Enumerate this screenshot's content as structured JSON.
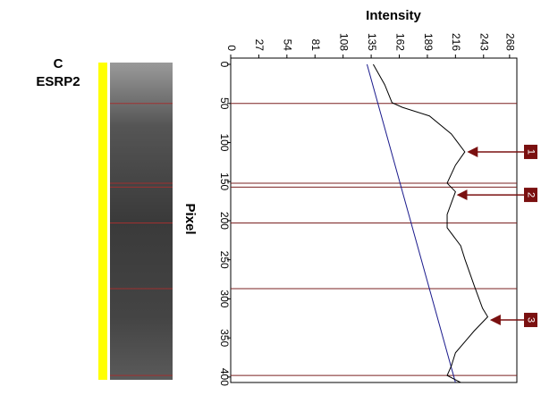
{
  "panel_label": "C",
  "gene": "ESRP2",
  "chart_data": {
    "type": "line",
    "x_label": "Pixel",
    "y_label": "Intensity",
    "xlim": [
      -8,
      407
    ],
    "xticks": [
      0,
      50,
      100,
      150,
      200,
      250,
      300,
      350,
      400
    ],
    "ylim": [
      0,
      275
    ],
    "yticks": [
      0,
      27,
      54,
      81,
      108,
      135,
      162,
      189,
      216,
      243,
      268
    ],
    "x": [
      0,
      26,
      49,
      55,
      66,
      89,
      112,
      129,
      152,
      163,
      192,
      209,
      232,
      249,
      283,
      312,
      323,
      341,
      369,
      386,
      398,
      407
    ],
    "series": [
      {
        "color": "#000000",
        "values": [
          137,
          148,
          155,
          165,
          191,
          212,
          225,
          216,
          208,
          216,
          208,
          208,
          221,
          225,
          234,
          242,
          247,
          234,
          216,
          212,
          208,
          221
        ]
      }
    ],
    "baseline": {
      "color": "#1a1a8c",
      "x": [
        0,
        407
      ],
      "values": [
        131,
        216
      ]
    },
    "band_boundaries": [
      50,
      152,
      157,
      203,
      287,
      398
    ],
    "peaks": [
      {
        "label": "1",
        "x": 112,
        "value": 225
      },
      {
        "label": "2",
        "x": 167,
        "value": 215
      },
      {
        "label": "3",
        "x": 327,
        "value": 247
      }
    ]
  }
}
